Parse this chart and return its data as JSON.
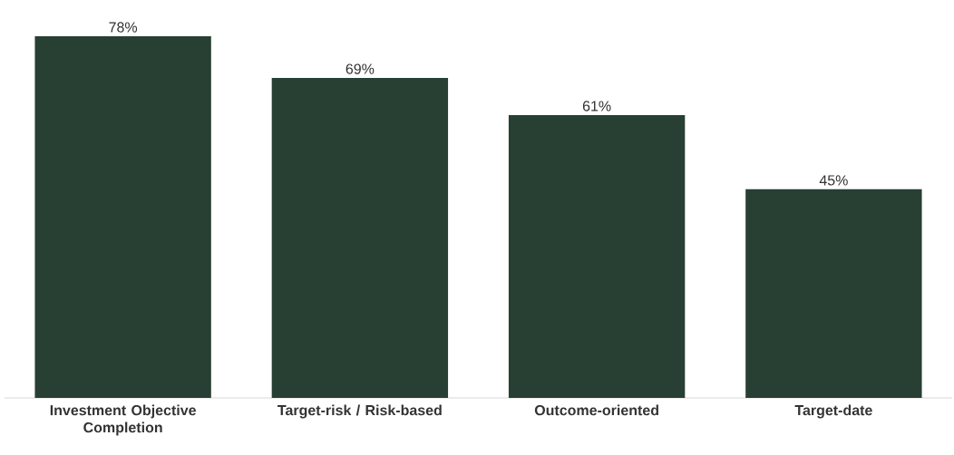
{
  "chart_data": {
    "type": "bar",
    "categories": [
      "Investment Objective Completion",
      "Target-risk / Risk-based",
      "Outcome-oriented",
      "Target-date"
    ],
    "values": [
      78,
      69,
      61,
      45
    ],
    "value_labels": [
      "78%",
      "69%",
      "61%",
      "45%"
    ],
    "color": "#283f33"
  }
}
